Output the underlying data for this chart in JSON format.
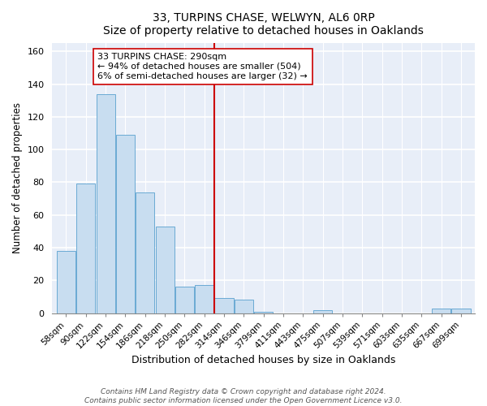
{
  "title": "33, TURPINS CHASE, WELWYN, AL6 0RP",
  "subtitle": "Size of property relative to detached houses in Oaklands",
  "xlabel": "Distribution of detached houses by size in Oaklands",
  "ylabel": "Number of detached properties",
  "bar_labels": [
    "58sqm",
    "90sqm",
    "122sqm",
    "154sqm",
    "186sqm",
    "218sqm",
    "250sqm",
    "282sqm",
    "314sqm",
    "346sqm",
    "379sqm",
    "411sqm",
    "443sqm",
    "475sqm",
    "507sqm",
    "539sqm",
    "571sqm",
    "603sqm",
    "635sqm",
    "667sqm",
    "699sqm"
  ],
  "bar_heights": [
    38,
    79,
    134,
    109,
    74,
    53,
    16,
    17,
    9,
    8,
    1,
    0,
    0,
    2,
    0,
    0,
    0,
    0,
    0,
    3,
    3
  ],
  "bar_color": "#c8ddf0",
  "bar_edge_color": "#6aaad4",
  "vline_x": 7.5,
  "vline_color": "#cc0000",
  "annotation_text": "33 TURPINS CHASE: 290sqm\n← 94% of detached houses are smaller (504)\n6% of semi-detached houses are larger (32) →",
  "annotation_box_color": "#ffffff",
  "annotation_box_edge": "#cc0000",
  "ylim": [
    0,
    165
  ],
  "yticks": [
    0,
    20,
    40,
    60,
    80,
    100,
    120,
    140,
    160
  ],
  "footer_line1": "Contains HM Land Registry data © Crown copyright and database right 2024.",
  "footer_line2": "Contains public sector information licensed under the Open Government Licence v3.0.",
  "background_color": "#ffffff",
  "plot_bg_color": "#e8eef8"
}
